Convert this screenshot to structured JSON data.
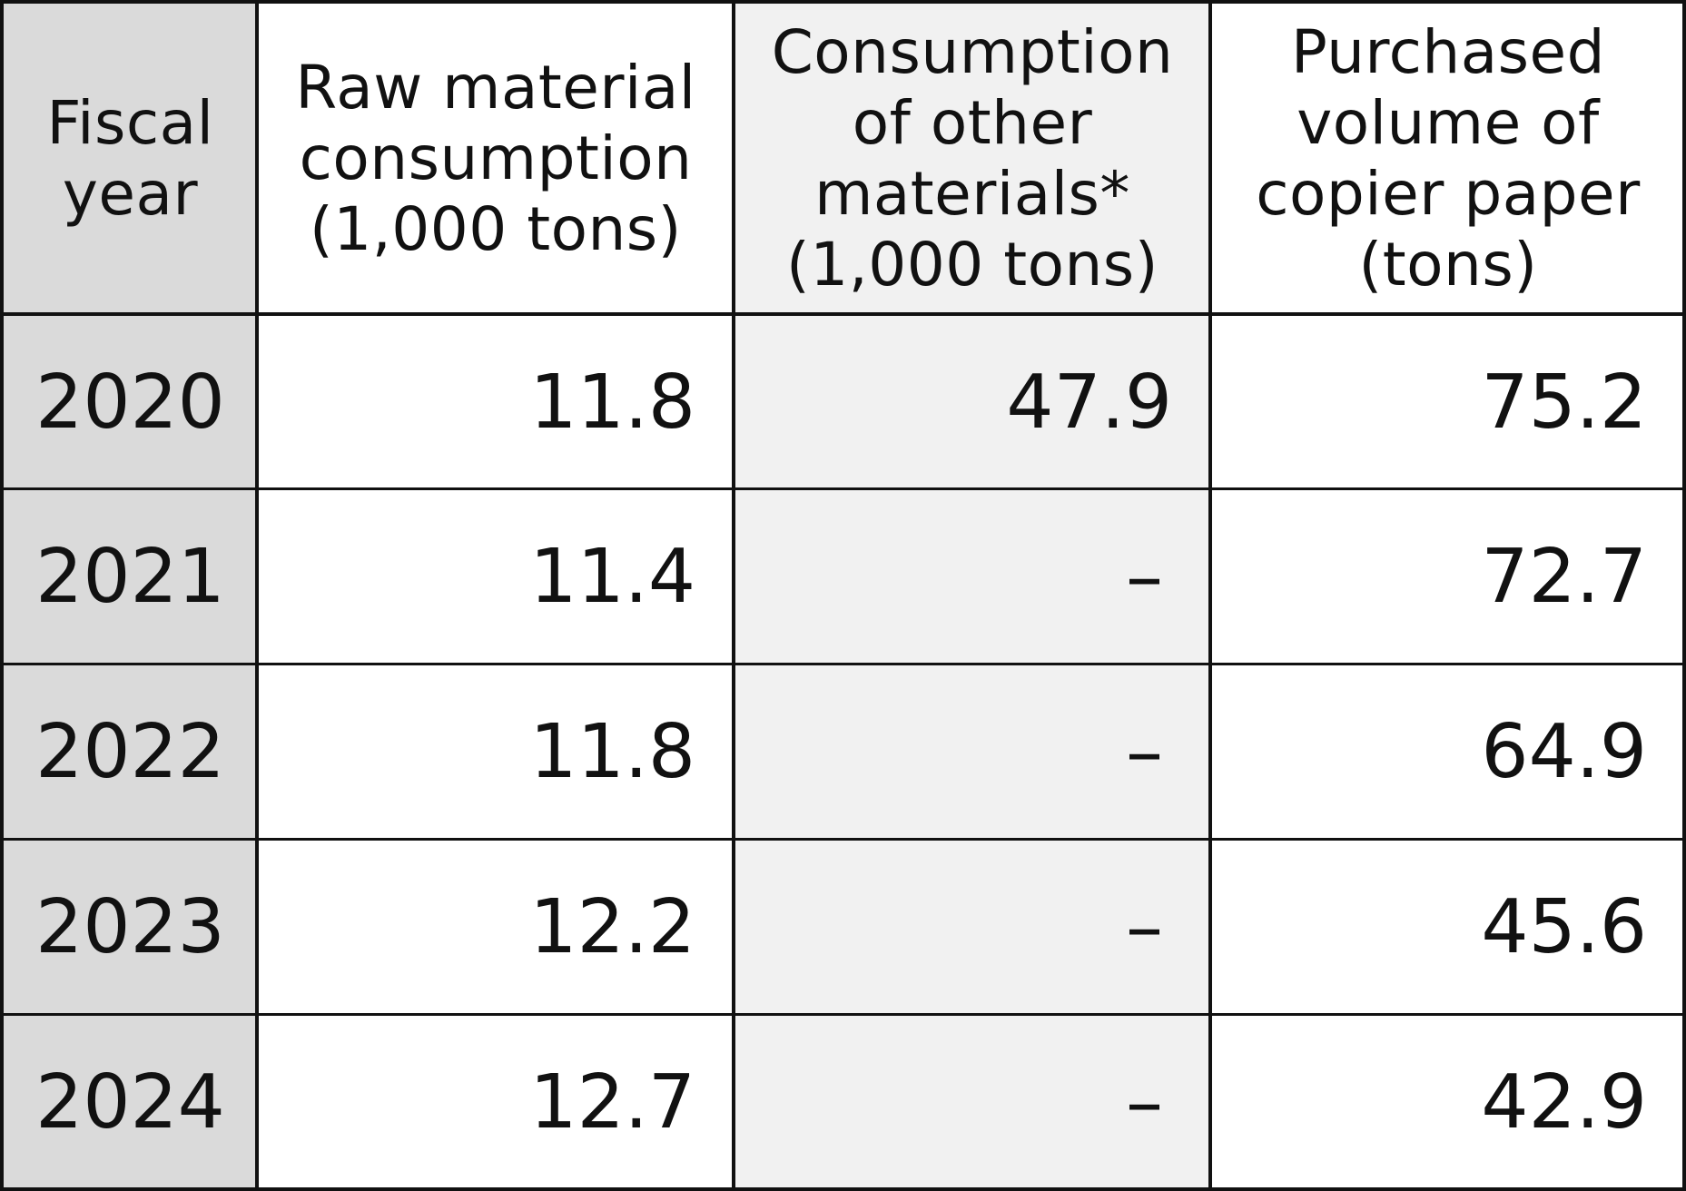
{
  "table": {
    "headers": [
      "Fiscal\nyear",
      "Raw material\nconsumption\n(1,000 tons)",
      "Consumption\nof other\nmaterials*\n(1,000 tons)",
      "Purchased\nvolume of\ncopier paper\n(tons)"
    ],
    "rows": [
      {
        "year": "2020",
        "raw": "11.8",
        "other": "47.9",
        "copier": "75.2"
      },
      {
        "year": "2021",
        "raw": "11.4",
        "other": "–",
        "copier": "72.7"
      },
      {
        "year": "2022",
        "raw": "11.8",
        "other": "–",
        "copier": "64.9"
      },
      {
        "year": "2023",
        "raw": "12.2",
        "other": "–",
        "copier": "45.6"
      },
      {
        "year": "2024",
        "raw": "12.7",
        "other": "–",
        "copier": "42.9"
      }
    ]
  },
  "colors": {
    "year_column_bg": "#dadada",
    "other_materials_column_bg": "#f1f1f1",
    "border": "#111111"
  }
}
